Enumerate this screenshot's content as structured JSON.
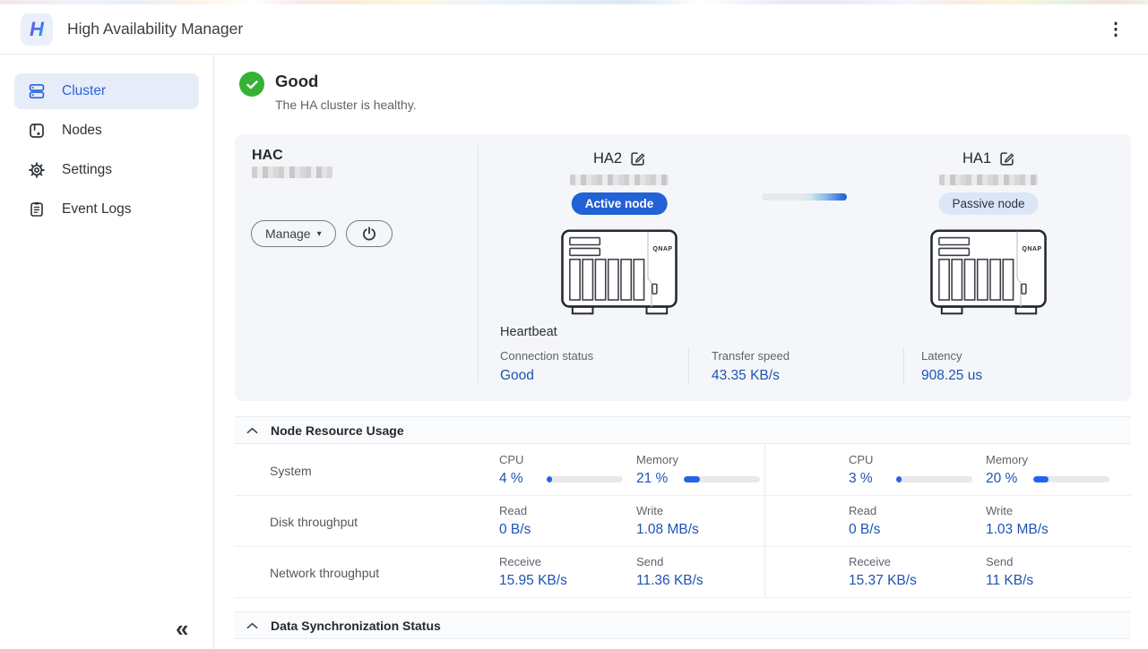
{
  "colors": {
    "green": "#35b234",
    "value-blue": "#1d53b4",
    "progress": "#2563eb",
    "active-badge": "#2361d6",
    "passive-badge": "#dbe6f9",
    "selected-bg": "#e7ecf9",
    "selected-text": "#2a66d9"
  },
  "icons": {
    "kebab": "⋮",
    "collapse": "«",
    "caret_down": "▾"
  },
  "topbar": {
    "title": "High Availability Manager",
    "logo_glyph": "H"
  },
  "sidebar": {
    "items": [
      {
        "label": "Cluster",
        "selected": true
      },
      {
        "label": "Nodes"
      },
      {
        "label": "Settings"
      },
      {
        "label": "Event Logs"
      }
    ]
  },
  "status": {
    "title": "Good",
    "subtitle": "The HA cluster is healthy."
  },
  "cluster_card": {
    "name": "HAC",
    "manage_label": "Manage",
    "nodes": [
      {
        "name": "HA2",
        "badge": "Active node",
        "role": "active",
        "brand": "QNAP"
      },
      {
        "name": "HA1",
        "badge": "Passive node",
        "role": "passive",
        "brand": "QNAP"
      }
    ],
    "heartbeat": {
      "title": "Heartbeat",
      "metrics": [
        {
          "label": "Connection status",
          "value": "Good"
        },
        {
          "label": "Transfer speed",
          "value": "43.35 KB/s"
        },
        {
          "label": "Latency",
          "value": "908.25 us"
        }
      ]
    }
  },
  "resource_section": {
    "title": "Node Resource Usage",
    "rows": [
      {
        "label": "System",
        "cells": [
          {
            "label": "CPU",
            "value": "4 %",
            "bar": 4
          },
          {
            "label": "Memory",
            "value": "21 %",
            "bar": 21
          },
          {
            "label": "CPU",
            "value": "3 %",
            "bar": 3
          },
          {
            "label": "Memory",
            "value": "20 %",
            "bar": 20
          }
        ]
      },
      {
        "label": "Disk throughput",
        "cells": [
          {
            "label": "Read",
            "value": "0 B/s"
          },
          {
            "label": "Write",
            "value": "1.08 MB/s"
          },
          {
            "label": "Read",
            "value": "0 B/s"
          },
          {
            "label": "Write",
            "value": "1.03 MB/s"
          }
        ]
      },
      {
        "label": "Network throughput",
        "cells": [
          {
            "label": "Receive",
            "value": "15.95 KB/s"
          },
          {
            "label": "Send",
            "value": "11.36 KB/s"
          },
          {
            "label": "Receive",
            "value": "15.37 KB/s"
          },
          {
            "label": "Send",
            "value": "11 KB/s"
          }
        ]
      }
    ]
  },
  "sync_section": {
    "title": "Data Synchronization Status"
  }
}
